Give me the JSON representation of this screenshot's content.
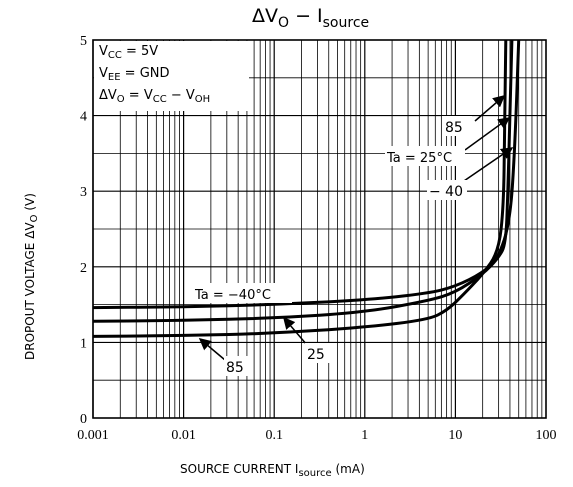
{
  "chart_data": {
    "type": "line",
    "title": {
      "prefix": "ΔV",
      "sub": "O",
      "mid": "  −  I",
      "sub2": "source"
    },
    "xlabel": {
      "pre": "SOURCE CURRENT   I",
      "sub": "source",
      "post": "   (mA)"
    },
    "ylabel": {
      "pre": "DROPOUT VOLTAGE   ΔV",
      "sub": "O",
      "post": "   (V)"
    },
    "x_scale": "log",
    "xlim": [
      0.001,
      100
    ],
    "ylim": [
      0,
      5
    ],
    "x_ticks": [
      "0.001",
      "0.01",
      "0.1",
      "1",
      "10",
      "100"
    ],
    "y_ticks": [
      "0",
      "1",
      "2",
      "3",
      "4",
      "5"
    ],
    "grid": true,
    "conditions": [
      {
        "pre": "V",
        "sub": "CC",
        "post": " = 5V"
      },
      {
        "pre": "V",
        "sub": "EE",
        "post": " = GND"
      },
      {
        "pre": "ΔV",
        "sub": "O",
        "post": " = V",
        "sub2": "CC",
        "post2": " − V",
        "sub3": "OH"
      }
    ],
    "series": [
      {
        "name": "−40",
        "x": [
          0.001,
          0.01,
          0.1,
          1,
          5,
          10,
          20,
          30,
          40,
          45,
          50
        ],
        "y": [
          1.46,
          1.47,
          1.5,
          1.56,
          1.65,
          1.74,
          1.92,
          2.12,
          2.6,
          3.5,
          5.0
        ]
      },
      {
        "name": "25",
        "x": [
          0.001,
          0.01,
          0.1,
          1,
          5,
          10,
          20,
          30,
          36,
          38,
          40,
          42
        ],
        "y": [
          1.28,
          1.29,
          1.32,
          1.4,
          1.55,
          1.66,
          1.9,
          2.12,
          2.3,
          3.0,
          4.0,
          5.0
        ]
      },
      {
        "name": "85",
        "x": [
          0.001,
          0.01,
          0.1,
          1,
          5,
          8,
          12,
          20,
          30,
          34,
          35,
          36
        ],
        "y": [
          1.08,
          1.09,
          1.12,
          1.2,
          1.3,
          1.42,
          1.62,
          1.9,
          2.2,
          2.8,
          3.8,
          5.0
        ]
      }
    ],
    "annotations": [
      {
        "text": "85",
        "kind": "upper"
      },
      {
        "text": "Ta = 25°C",
        "kind": "upper"
      },
      {
        "text": "− 40",
        "kind": "upper"
      },
      {
        "text": "Ta = −40°C",
        "kind": "lower"
      },
      {
        "text": "25",
        "kind": "lower"
      },
      {
        "text": "85",
        "kind": "lower"
      }
    ]
  }
}
